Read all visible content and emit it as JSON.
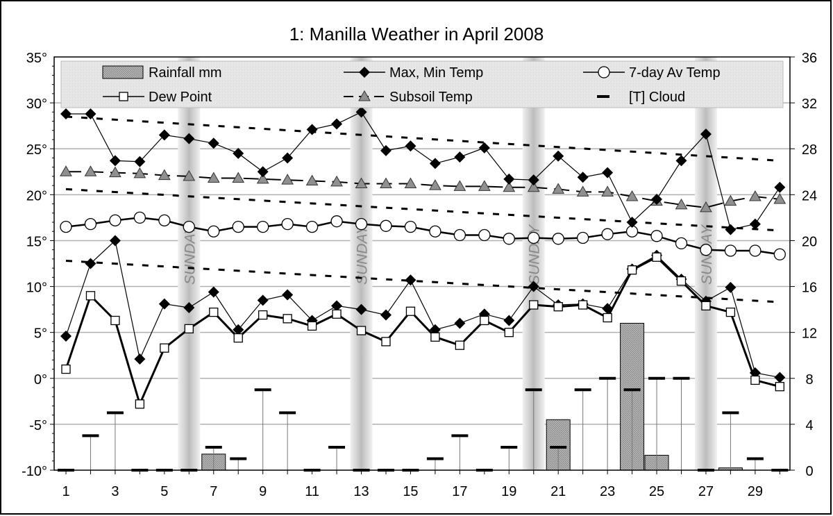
{
  "chart_data": {
    "type": "line",
    "title": "1: Manilla Weather in April 2008",
    "x": [
      1,
      2,
      3,
      4,
      5,
      6,
      7,
      8,
      9,
      10,
      11,
      12,
      13,
      14,
      15,
      16,
      17,
      18,
      19,
      20,
      21,
      22,
      23,
      24,
      25,
      26,
      27,
      28,
      29,
      30
    ],
    "x_tick_labels": [
      "1",
      "3",
      "5",
      "7",
      "9",
      "11",
      "13",
      "15",
      "17",
      "19",
      "21",
      "23",
      "25",
      "27",
      "29"
    ],
    "y_left": {
      "range": [
        -10,
        35
      ],
      "ticks": [
        "-10°",
        "-5°",
        "0°",
        "5°",
        "10°",
        "15°",
        "20°",
        "25°",
        "30°",
        "35°"
      ]
    },
    "y_right": {
      "range": [
        0,
        36
      ],
      "ticks": [
        "0",
        "4",
        "8",
        "12",
        "16",
        "20",
        "24",
        "28",
        "32",
        "36"
      ]
    },
    "grid": true,
    "legend_placement": "top",
    "legend": [
      "Rainfall mm",
      "Max, Min Temp",
      "7-day Av Temp",
      "Dew Point",
      "Subsoil Temp",
      "[T] Cloud"
    ],
    "sunday_label": "SUNDAY",
    "sundays": [
      6,
      13,
      20,
      27
    ],
    "series": [
      {
        "name": "Max, Min Temp",
        "part": "max",
        "axis": "left",
        "color": "#000000",
        "values": [
          28.8,
          28.8,
          23.7,
          23.6,
          26.5,
          26.1,
          25.6,
          24.5,
          22.5,
          24.0,
          27.1,
          27.7,
          29.0,
          24.8,
          25.3,
          23.4,
          24.1,
          25.1,
          21.7,
          21.6,
          24.2,
          21.9,
          22.4,
          17.0,
          19.5,
          23.7,
          26.6,
          16.2,
          16.8,
          20.8
        ]
      },
      {
        "name": "Max, Min Temp",
        "part": "min",
        "axis": "left",
        "color": "#000000",
        "values": [
          4.6,
          12.5,
          15.0,
          2.1,
          8.1,
          7.7,
          9.4,
          5.3,
          8.5,
          9.1,
          6.3,
          7.9,
          7.5,
          6.9,
          10.7,
          5.3,
          6.0,
          7.0,
          6.3,
          10.0,
          8.0,
          8.1,
          7.6,
          11.9,
          13.4,
          10.8,
          8.4,
          9.9,
          0.6,
          0.1
        ]
      },
      {
        "name": "7-day Av Temp",
        "axis": "left",
        "color": "#000000",
        "values": [
          16.5,
          16.8,
          17.2,
          17.5,
          17.2,
          16.5,
          16.0,
          16.5,
          16.5,
          16.8,
          16.5,
          17.1,
          16.8,
          16.6,
          16.5,
          16.0,
          15.6,
          15.6,
          15.2,
          15.3,
          15.2,
          15.3,
          15.7,
          16.0,
          15.5,
          14.7,
          14.0,
          13.9,
          13.9,
          13.5
        ]
      },
      {
        "name": "Dew Point",
        "axis": "left",
        "color": "#000000",
        "values": [
          1.0,
          9.0,
          6.3,
          -2.8,
          3.3,
          5.4,
          7.2,
          4.4,
          6.9,
          6.5,
          5.7,
          7.0,
          5.2,
          4.0,
          7.3,
          4.5,
          3.6,
          6.3,
          5.0,
          8.0,
          7.8,
          8.0,
          6.6,
          11.8,
          13.2,
          10.6,
          7.9,
          7.2,
          -0.2,
          -0.9
        ]
      },
      {
        "name": "Subsoil Temp",
        "axis": "left",
        "color": "#808080",
        "values": [
          22.5,
          22.5,
          22.4,
          22.3,
          22.1,
          22.0,
          21.8,
          21.8,
          21.7,
          21.6,
          21.5,
          21.4,
          21.2,
          21.2,
          21.2,
          21.0,
          20.9,
          20.9,
          20.8,
          20.8,
          20.6,
          20.3,
          20.3,
          19.8,
          19.3,
          18.9,
          18.6,
          19.3,
          19.8,
          19.5
        ]
      },
      {
        "name": "[T] Cloud",
        "axis": "right",
        "values": [
          0,
          3,
          5,
          0,
          0,
          0,
          2,
          1,
          7,
          5,
          0,
          2,
          0,
          0,
          0,
          1,
          3,
          0,
          2,
          7,
          2,
          7,
          8,
          7,
          8,
          8,
          0,
          5,
          1,
          0
        ]
      },
      {
        "name": "Rainfall mm",
        "axis": "right",
        "type": "bar",
        "color": "#a0a0a0",
        "values": [
          0,
          0,
          0,
          0,
          0,
          0,
          1.4,
          0,
          0,
          0,
          0,
          0,
          0,
          0,
          0,
          0,
          0,
          0,
          0,
          0,
          4.4,
          0,
          0,
          12.8,
          1.3,
          0,
          0,
          0.2,
          0,
          0
        ]
      }
    ],
    "reference_lines": [
      {
        "axis": "left",
        "style": "dashed",
        "from": [
          1,
          28.5
        ],
        "to": [
          30,
          23.7
        ]
      },
      {
        "axis": "left",
        "style": "dashed",
        "from": [
          1,
          20.6
        ],
        "to": [
          30,
          16.1
        ]
      },
      {
        "axis": "left",
        "style": "dashed",
        "from": [
          1,
          12.8
        ],
        "to": [
          30,
          8.3
        ]
      }
    ]
  }
}
